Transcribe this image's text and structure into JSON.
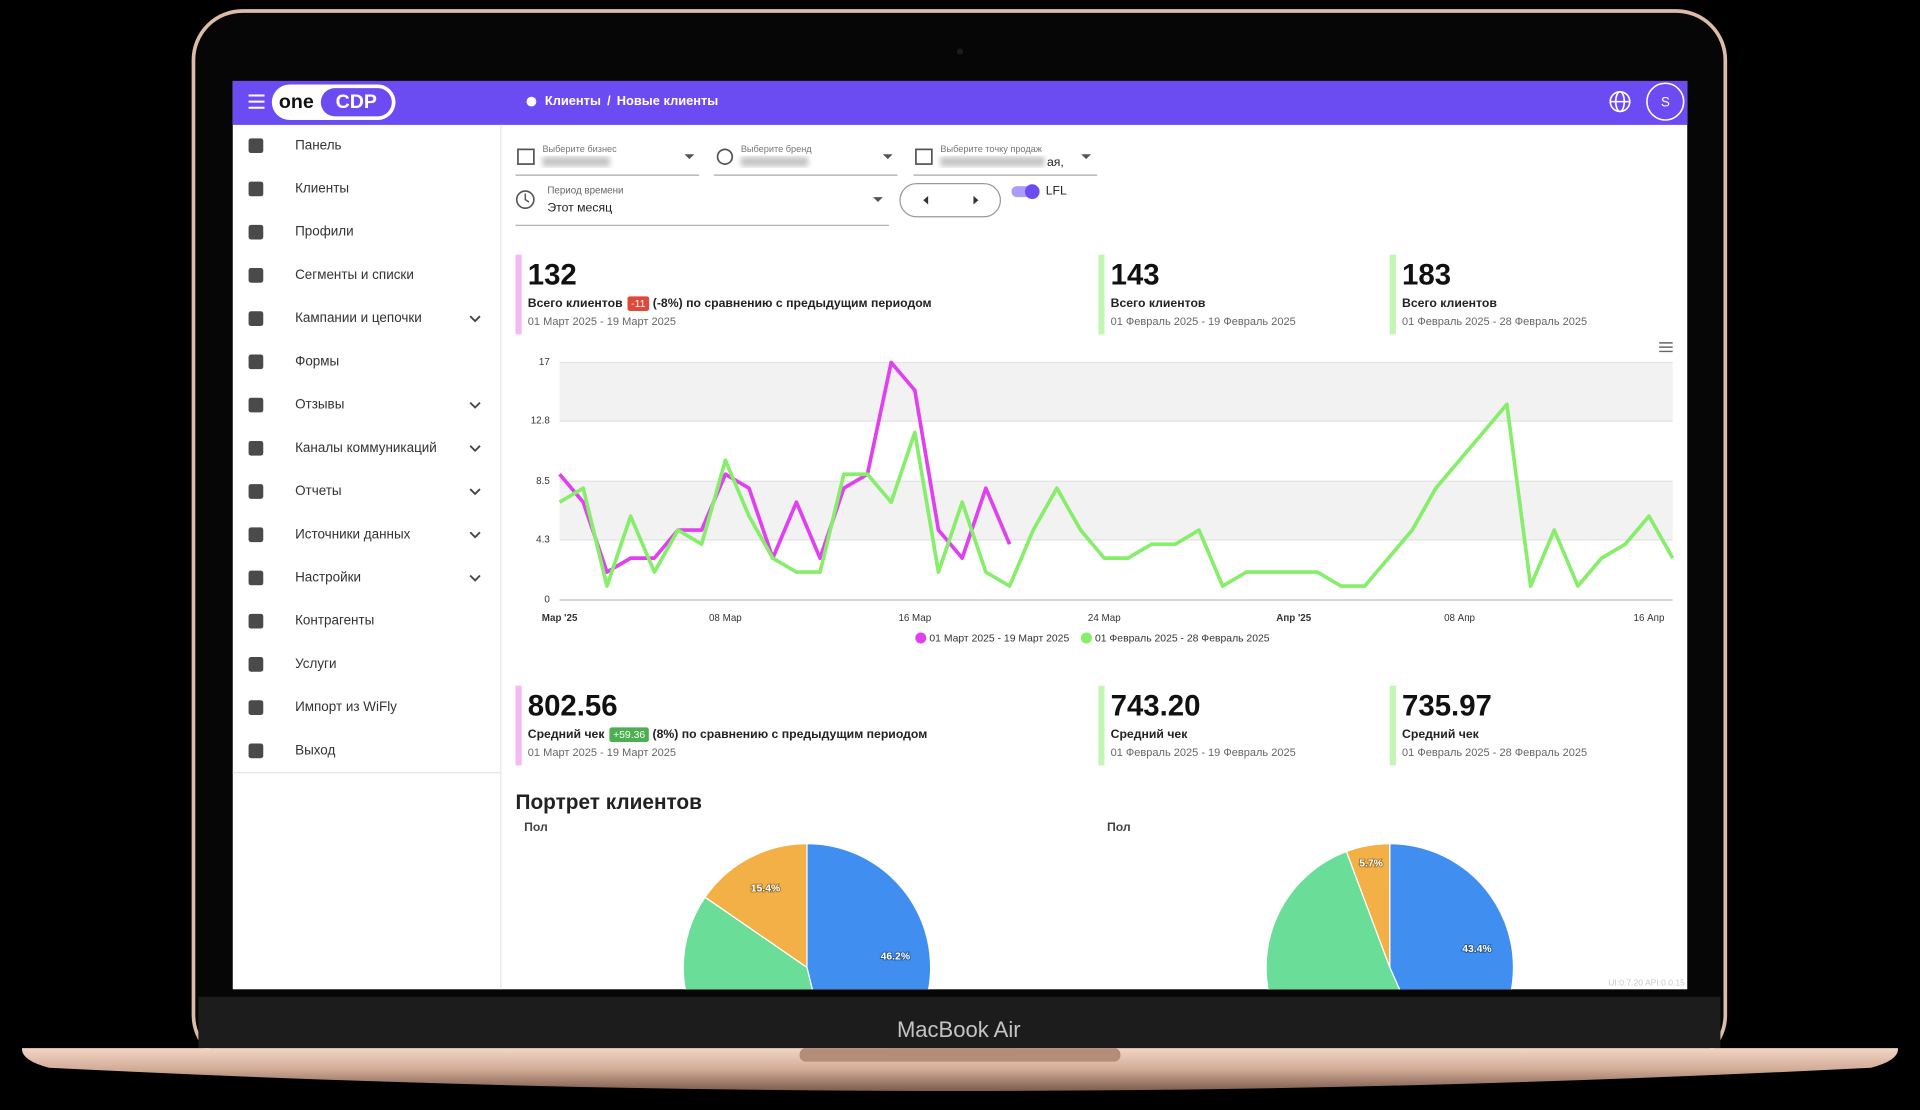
{
  "device_label": "MacBook Air",
  "header": {
    "logo": [
      "one",
      "CDP"
    ],
    "breadcrumb": [
      "Клиенты",
      "Новые клиенты"
    ],
    "breadcrumb_separator": "/",
    "avatar": "S"
  },
  "sidebar": {
    "items": [
      {
        "label": "Панель"
      },
      {
        "label": "Клиенты"
      },
      {
        "label": "Профили"
      },
      {
        "label": "Сегменты и списки"
      },
      {
        "label": "Кампании и цепочки",
        "submenu": true
      },
      {
        "label": "Формы"
      },
      {
        "label": "Отзывы",
        "submenu": true
      },
      {
        "label": "Каналы коммуникаций",
        "submenu": true
      },
      {
        "label": "Отчеты",
        "submenu": true
      },
      {
        "label": "Источники данных",
        "submenu": true
      },
      {
        "label": "Настройки",
        "submenu": true
      },
      {
        "label": "Контрагенты"
      },
      {
        "label": "Услуги"
      },
      {
        "label": "Импорт из WiFly"
      },
      {
        "label": "Выход"
      }
    ]
  },
  "filters": {
    "business": {
      "label": "Выберите бизнес"
    },
    "brand": {
      "label": "Выберите бренд"
    },
    "store": {
      "label": "Выберите точку продаж",
      "value_tail": "ая,"
    },
    "period": {
      "label": "Период времени",
      "value": "Этот месяц"
    },
    "lfl": {
      "label": "LFL",
      "on": true
    }
  },
  "kpi_rows": [
    [
      {
        "value": "132",
        "label": "Всего клиентов",
        "badge": "-11",
        "badge_color": "#e0483a",
        "comparison": "(-8%) по сравнению с предыдущим периодом",
        "period": "01 Март 2025 - 19 Март 2025",
        "color": "#f4b9f1"
      },
      {
        "value": "143",
        "label": "Всего клиентов",
        "period": "01 Февраль 2025 - 19 Февраль 2025",
        "color": "#c2f6b4"
      },
      {
        "value": "183",
        "label": "Всего клиентов",
        "period": "01 Февраль 2025 - 28 Февраль 2025",
        "color": "#c2f6b4"
      }
    ],
    [
      {
        "value": "802.56",
        "label": "Средний чек",
        "badge": "+59.36",
        "badge_color": "#4caf50",
        "comparison": "(8%) по сравнению с предыдущим периодом",
        "period": "01 Март 2025 - 19 Март 2025",
        "color": "#f4b9f1"
      },
      {
        "value": "743.20",
        "label": "Средний чек",
        "period": "01 Февраль 2025 - 19 Февраль 2025",
        "color": "#c2f6b4"
      },
      {
        "value": "735.97",
        "label": "Средний чек",
        "period": "01 Февраль 2025 - 28 Февраль 2025",
        "color": "#c2f6b4"
      }
    ]
  ],
  "section_title": "Портрет клиентов",
  "version": "UI:0.7.20 API:0.0.15",
  "chart_data": [
    {
      "type": "line",
      "x": [
        "2025-03-01",
        "2025-03-02",
        "2025-03-03",
        "2025-03-04",
        "2025-03-05",
        "2025-03-06",
        "2025-03-07",
        "2025-03-08",
        "2025-03-09",
        "2025-03-10",
        "2025-03-11",
        "2025-03-12",
        "2025-03-13",
        "2025-03-14",
        "2025-03-15",
        "2025-03-16",
        "2025-03-17",
        "2025-03-18",
        "2025-03-19",
        "2025-03-20",
        "2025-03-21",
        "2025-03-22",
        "2025-03-23",
        "2025-03-24",
        "2025-03-25",
        "2025-03-26",
        "2025-03-27",
        "2025-03-28",
        "2025-03-29",
        "2025-03-30",
        "2025-03-31",
        "2025-04-01",
        "2025-04-02",
        "2025-04-03",
        "2025-04-04",
        "2025-04-05",
        "2025-04-06",
        "2025-04-07",
        "2025-04-08",
        "2025-04-09",
        "2025-04-10",
        "2025-04-11",
        "2025-04-12",
        "2025-04-13",
        "2025-04-14",
        "2025-04-15",
        "2025-04-16",
        "2025-04-17"
      ],
      "xlim": [
        "2025-03-01",
        "2025-04-17"
      ],
      "xticks": [
        {
          "value": "2025-03-01",
          "label": "Мар '25"
        },
        {
          "value": "2025-03-08",
          "label": "08 Мар"
        },
        {
          "value": "2025-03-16",
          "label": "16 Мар"
        },
        {
          "value": "2025-03-24",
          "label": "24 Мар"
        },
        {
          "value": "2025-04-01",
          "label": "Апр '25"
        },
        {
          "value": "2025-04-08",
          "label": "08 Апр"
        },
        {
          "value": "2025-04-16",
          "label": "16 Апр"
        }
      ],
      "ylim": [
        0,
        17
      ],
      "yticks": [
        0,
        4.3,
        8.5,
        12.8,
        17
      ],
      "grid": true,
      "series": [
        {
          "name": "01 Март 2025 - 19 Март 2025",
          "color": "#e040f0",
          "values": [
            9,
            7,
            2,
            3,
            3,
            5,
            5,
            9,
            8,
            3,
            7,
            3,
            8,
            9,
            17,
            15,
            5,
            3,
            8,
            4,
            null,
            null,
            null,
            null,
            null,
            null,
            null,
            null,
            null,
            null,
            null,
            null,
            null,
            null,
            null,
            null,
            null,
            null,
            null,
            null,
            null,
            null,
            null,
            null,
            null,
            null,
            null,
            null
          ]
        },
        {
          "name": "01 Февраль 2025 - 28 Февраль 2025",
          "color": "#86ee6a",
          "values": [
            7,
            8,
            1,
            6,
            2,
            5,
            4,
            10,
            6,
            3,
            2,
            2,
            9,
            9,
            7,
            12,
            2,
            7,
            2,
            1,
            5,
            8,
            5,
            3,
            3,
            4,
            4,
            5,
            1,
            2,
            2,
            2,
            2,
            1,
            1,
            3,
            5,
            8,
            10,
            12,
            14,
            1,
            5,
            1,
            3,
            4,
            6,
            3
          ]
        }
      ]
    },
    {
      "type": "pie",
      "title": "Пол",
      "values": [
        46.2,
        38.4,
        15.4
      ],
      "value_labels": [
        "46.2%",
        null,
        "15.4%"
      ],
      "colors": [
        "#3f8ef0",
        "#6ade98",
        "#f3b046"
      ]
    },
    {
      "type": "pie",
      "title": "Пол",
      "values": [
        43.4,
        50.9,
        5.7
      ],
      "value_labels": [
        "43.4%",
        null,
        "5.7%"
      ],
      "colors": [
        "#3f8ef0",
        "#6ade98",
        "#f3b046"
      ]
    }
  ]
}
